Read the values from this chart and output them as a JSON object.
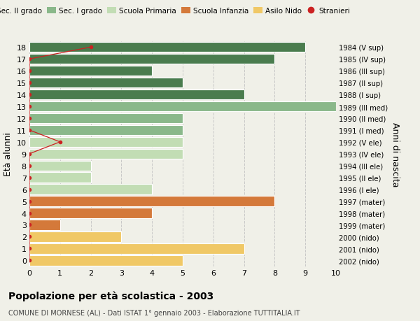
{
  "ages": [
    18,
    17,
    16,
    15,
    14,
    13,
    12,
    11,
    10,
    9,
    8,
    7,
    6,
    5,
    4,
    3,
    2,
    1,
    0
  ],
  "years": [
    "1984 (V sup)",
    "1985 (IV sup)",
    "1986 (III sup)",
    "1987 (II sup)",
    "1988 (I sup)",
    "1989 (III med)",
    "1990 (II med)",
    "1991 (I med)",
    "1992 (V ele)",
    "1993 (IV ele)",
    "1994 (III ele)",
    "1995 (II ele)",
    "1996 (I ele)",
    "1997 (mater)",
    "1998 (mater)",
    "1999 (mater)",
    "2000 (nido)",
    "2001 (nido)",
    "2002 (nido)"
  ],
  "values": [
    9,
    8,
    4,
    5,
    7,
    10,
    5,
    5,
    5,
    5,
    2,
    2,
    4,
    8,
    4,
    1,
    3,
    7,
    5
  ],
  "colors": [
    "#4a7c4e",
    "#4a7c4e",
    "#4a7c4e",
    "#4a7c4e",
    "#4a7c4e",
    "#8ab88a",
    "#8ab88a",
    "#8ab88a",
    "#c2ddb4",
    "#c2ddb4",
    "#c2ddb4",
    "#c2ddb4",
    "#c2ddb4",
    "#d4793a",
    "#d4793a",
    "#d4793a",
    "#f0c866",
    "#f0c866",
    "#f0c866"
  ],
  "stranieri_x": [
    2,
    0,
    0,
    0,
    0,
    0,
    0,
    0,
    1,
    0,
    0,
    0,
    0,
    0,
    0,
    0,
    0,
    0,
    0
  ],
  "legend_labels": [
    "Sec. II grado",
    "Sec. I grado",
    "Scuola Primaria",
    "Scuola Infanzia",
    "Asilo Nido",
    "Stranieri"
  ],
  "legend_colors": [
    "#4a7c4e",
    "#8ab88a",
    "#c2ddb4",
    "#d4793a",
    "#f0c866",
    "#cc2222"
  ],
  "ylabel": "Età alunni",
  "ylabel_right": "Anni di nascita",
  "title": "Popolazione per età scolastica - 2003",
  "subtitle": "COMUNE DI MORNESE (AL) - Dati ISTAT 1° gennaio 2003 - Elaborazione TUTTITALIA.IT",
  "xlim": [
    0,
    10
  ],
  "ylim": [
    -0.5,
    18.5
  ],
  "background_color": "#f0f0e8",
  "grid_color": "#c8c8c8"
}
